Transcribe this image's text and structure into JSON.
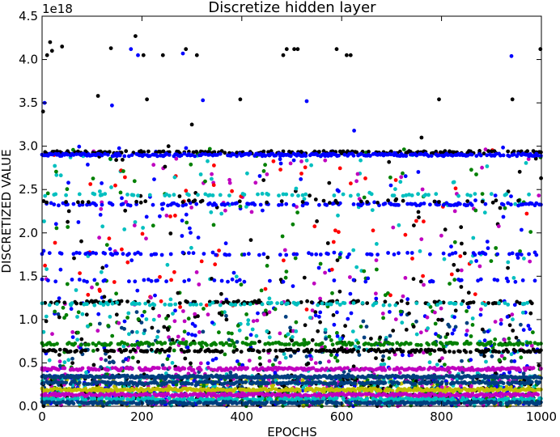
{
  "chart_data": {
    "type": "scatter",
    "title": "Discretize hidden layer",
    "xlabel": "EPOCHS",
    "ylabel": "DISCRETIZED VALUE",
    "y_multiplier": "1e18",
    "xlim": [
      0,
      1000
    ],
    "ylim": [
      0,
      4.5
    ],
    "xticks": [
      "0",
      "200",
      "400",
      "600",
      "800",
      "1000"
    ],
    "yticks": [
      "0.0",
      "0.5",
      "1.0",
      "1.5",
      "2.0",
      "2.5",
      "3.0",
      "3.5",
      "4.0",
      "4.5"
    ],
    "grid": false,
    "legend": "none",
    "marker_radius_note": "small filled circles",
    "series_colors": [
      "#000000",
      "#0000ff",
      "#00bfbf",
      "#008000",
      "#bf00bf",
      "#ff0000",
      "#003f7f",
      "#bfbf00"
    ],
    "bands": [
      {
        "color": "#000000",
        "y": 2.93,
        "density": 0.55
      },
      {
        "color": "#0000ff",
        "y": 2.9,
        "density": 0.75
      },
      {
        "color": "#00bfbf",
        "y": 2.44,
        "density": 0.18
      },
      {
        "color": "#0000ff",
        "y": 2.33,
        "density": 0.35
      },
      {
        "color": "#000000",
        "y": 2.36,
        "density": 0.12
      },
      {
        "color": "#0000ff",
        "y": 1.76,
        "density": 0.22
      },
      {
        "color": "#0000ff",
        "y": 1.45,
        "density": 0.15
      },
      {
        "color": "#000000",
        "y": 1.2,
        "density": 0.3
      },
      {
        "color": "#00bfbf",
        "y": 1.18,
        "density": 0.28
      },
      {
        "color": "#008000",
        "y": 0.72,
        "density": 0.55
      },
      {
        "color": "#000000",
        "y": 0.64,
        "density": 0.55
      },
      {
        "color": "#bf00bf",
        "y": 0.43,
        "density": 0.75
      },
      {
        "color": "#003f7f",
        "y": 0.34,
        "density": 0.9
      },
      {
        "color": "#003f7f",
        "y": 0.27,
        "density": 0.7
      },
      {
        "color": "#bfbf00",
        "y": 0.19,
        "density": 0.85
      },
      {
        "color": "#bf00bf",
        "y": 0.13,
        "density": 0.9
      },
      {
        "color": "#00bfbf",
        "y": 0.08,
        "density": 0.6
      },
      {
        "color": "#003f7f",
        "y": 0.04,
        "density": 0.8
      }
    ],
    "outliers": [
      {
        "x": 2,
        "y": 3.4,
        "color": "#000000"
      },
      {
        "x": 10,
        "y": 4.05,
        "color": "#000000"
      },
      {
        "x": 16,
        "y": 4.2,
        "color": "#000000"
      },
      {
        "x": 20,
        "y": 4.1,
        "color": "#000000"
      },
      {
        "x": 40,
        "y": 4.15,
        "color": "#000000"
      },
      {
        "x": 5,
        "y": 3.5,
        "color": "#0000ff"
      },
      {
        "x": 112,
        "y": 3.58,
        "color": "#000000"
      },
      {
        "x": 138,
        "y": 4.13,
        "color": "#000000"
      },
      {
        "x": 140,
        "y": 3.47,
        "color": "#0000ff"
      },
      {
        "x": 178,
        "y": 4.12,
        "color": "#0000ff"
      },
      {
        "x": 187,
        "y": 4.27,
        "color": "#000000"
      },
      {
        "x": 192,
        "y": 4.05,
        "color": "#0000ff"
      },
      {
        "x": 203,
        "y": 4.05,
        "color": "#000000"
      },
      {
        "x": 210,
        "y": 3.54,
        "color": "#000000"
      },
      {
        "x": 242,
        "y": 4.05,
        "color": "#000000"
      },
      {
        "x": 282,
        "y": 4.07,
        "color": "#0000ff"
      },
      {
        "x": 288,
        "y": 4.12,
        "color": "#000000"
      },
      {
        "x": 300,
        "y": 3.25,
        "color": "#000000"
      },
      {
        "x": 310,
        "y": 4.05,
        "color": "#000000"
      },
      {
        "x": 322,
        "y": 3.53,
        "color": "#0000ff"
      },
      {
        "x": 397,
        "y": 3.54,
        "color": "#000000"
      },
      {
        "x": 483,
        "y": 4.05,
        "color": "#000000"
      },
      {
        "x": 490,
        "y": 4.12,
        "color": "#000000"
      },
      {
        "x": 505,
        "y": 4.12,
        "color": "#000000"
      },
      {
        "x": 512,
        "y": 4.12,
        "color": "#000000"
      },
      {
        "x": 530,
        "y": 3.52,
        "color": "#0000ff"
      },
      {
        "x": 590,
        "y": 4.12,
        "color": "#000000"
      },
      {
        "x": 610,
        "y": 4.05,
        "color": "#000000"
      },
      {
        "x": 618,
        "y": 4.05,
        "color": "#000000"
      },
      {
        "x": 625,
        "y": 3.18,
        "color": "#0000ff"
      },
      {
        "x": 760,
        "y": 3.1,
        "color": "#000000"
      },
      {
        "x": 795,
        "y": 3.54,
        "color": "#000000"
      },
      {
        "x": 940,
        "y": 4.04,
        "color": "#0000ff"
      },
      {
        "x": 942,
        "y": 3.54,
        "color": "#000000"
      },
      {
        "x": 998,
        "y": 4.12,
        "color": "#000000"
      }
    ]
  }
}
